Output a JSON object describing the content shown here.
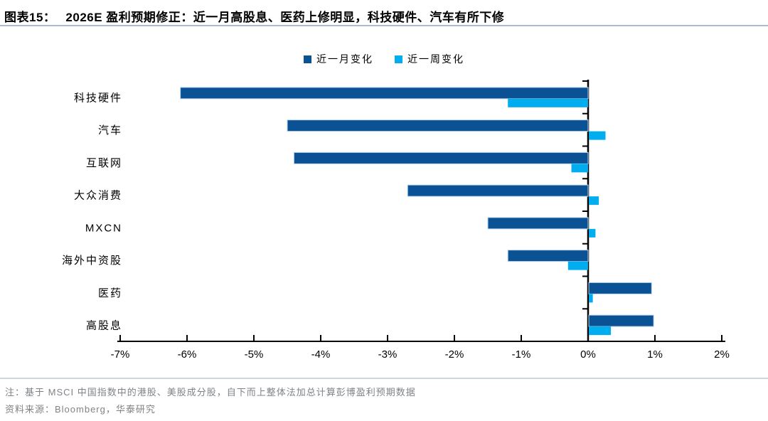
{
  "header": {
    "label": "图表15：",
    "title": "2026E 盈利预期修正：近一月高股息、医药上修明显，科技硬件、汽车有所下修"
  },
  "legend": {
    "items": [
      {
        "label": "近一月变化"
      },
      {
        "label": "近一周变化"
      }
    ]
  },
  "chart_data": {
    "type": "bar",
    "orientation": "horizontal",
    "title": "2026E 盈利预期修正：近一月高股息、医药上修明显，科技硬件、汽车有所下修",
    "categories": [
      "科技硬件",
      "汽车",
      "互联网",
      "大众消费",
      "MXCN",
      "海外中资股",
      "医药",
      "高股息"
    ],
    "series": [
      {
        "name": "近一月变化",
        "color": "#0A5294",
        "values": [
          -6.1,
          -4.5,
          -4.4,
          -2.7,
          -1.5,
          -1.2,
          0.94,
          0.97
        ]
      },
      {
        "name": "近一周变化",
        "color": "#00AEEF",
        "values": [
          -1.2,
          0.25,
          -0.25,
          0.15,
          0.1,
          -0.3,
          0.06,
          0.33
        ]
      }
    ],
    "unit": "%",
    "xlim": [
      -7,
      2
    ],
    "x_tick_values": [
      -7,
      -6,
      -5,
      -4,
      -3,
      -2,
      -1,
      0,
      1,
      2
    ],
    "x_tick_labels": [
      "-7%",
      "-6%",
      "-5%",
      "-4%",
      "-3%",
      "-2%",
      "-1%",
      "0%",
      "1%",
      "2%"
    ],
    "grid": false,
    "legend_position": "top-center"
  },
  "notes": {
    "note": "注：基于 MSCI 中国指数中的港股、美股成分股，自下而上整体法加总计算彭博盈利预期数据",
    "source": "资料来源：Bloomberg，华泰研究"
  },
  "colors": {
    "bar_month": "#0A5294",
    "bar_week": "#00AEEF",
    "bar_edge": "#BDD7EE",
    "axis": "#000000",
    "title_rule": "#A9BCD1",
    "note_rule": "#CDD5DE",
    "note_text": "#7F8387"
  }
}
